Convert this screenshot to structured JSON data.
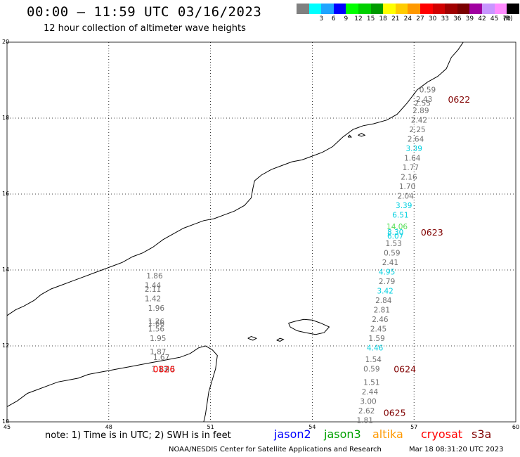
{
  "header": {
    "title": "00:00 – 11:59 UTC 03/16/2023",
    "subtitle": "12 hour collection of altimeter wave heights"
  },
  "legend": {
    "unit_label": "(ft)",
    "scale": [
      {
        "label": "",
        "color": "#808080"
      },
      {
        "label": "3",
        "color": "#00ffff"
      },
      {
        "label": "6",
        "color": "#1fa5ff"
      },
      {
        "label": "9",
        "color": "#0000ff"
      },
      {
        "label": "12",
        "color": "#00ff00"
      },
      {
        "label": "15",
        "color": "#00d000"
      },
      {
        "label": "18",
        "color": "#009a00"
      },
      {
        "label": "21",
        "color": "#ffff00"
      },
      {
        "label": "24",
        "color": "#ffcc00"
      },
      {
        "label": "27",
        "color": "#ff9900"
      },
      {
        "label": "30",
        "color": "#ff0000"
      },
      {
        "label": "33",
        "color": "#d10000"
      },
      {
        "label": "36",
        "color": "#a00000"
      },
      {
        "label": "39",
        "color": "#7a0000"
      },
      {
        "label": "42",
        "color": "#a000a0"
      },
      {
        "label": "45",
        "color": "#c896ff"
      },
      {
        "label": "70",
        "color": "#ff8cff"
      },
      {
        "label": "",
        "color": "#000000"
      }
    ]
  },
  "axes": {
    "lat_ticks": [
      "20",
      "18",
      "16",
      "14",
      "12",
      "10"
    ],
    "lon_ticks": [
      "45",
      "48",
      "51",
      "54",
      "57",
      "60"
    ]
  },
  "map": {
    "region": {
      "lon_min": 45,
      "lon_max": 60,
      "lat_min": 10,
      "lat_max": 20
    },
    "track_labels": [
      {
        "text": "0622",
        "lon": 58.0,
        "lat": 18.5,
        "color": "#800000"
      },
      {
        "text": "0623",
        "lon": 57.2,
        "lat": 15.0,
        "color": "#800000"
      },
      {
        "text": "0624",
        "lon": 56.4,
        "lat": 11.4,
        "color": "#800000"
      },
      {
        "text": "0625",
        "lon": 56.1,
        "lat": 10.25,
        "color": "#800000"
      },
      {
        "text": "0826",
        "lon": 49.3,
        "lat": 11.4,
        "color": "#ff0000"
      }
    ],
    "observations": [
      {
        "value": "0.59",
        "lon": 57.4,
        "lat": 18.75,
        "color": "#707070"
      },
      {
        "value": "2.43",
        "lon": 57.3,
        "lat": 18.5,
        "color": "#707070"
      },
      {
        "value": "2.55",
        "lon": 57.25,
        "lat": 18.4,
        "color": "#707070"
      },
      {
        "value": "2.89",
        "lon": 57.2,
        "lat": 18.2,
        "color": "#707070"
      },
      {
        "value": "2.42",
        "lon": 57.15,
        "lat": 17.95,
        "color": "#707070"
      },
      {
        "value": "2.25",
        "lon": 57.1,
        "lat": 17.7,
        "color": "#707070"
      },
      {
        "value": "2.64",
        "lon": 57.05,
        "lat": 17.45,
        "color": "#707070"
      },
      {
        "value": "3.39",
        "lon": 57.0,
        "lat": 17.2,
        "color": "#00d0e0"
      },
      {
        "value": "1.64",
        "lon": 56.95,
        "lat": 16.95,
        "color": "#707070"
      },
      {
        "value": "1.77",
        "lon": 56.9,
        "lat": 16.7,
        "color": "#707070"
      },
      {
        "value": "2.16",
        "lon": 56.85,
        "lat": 16.45,
        "color": "#707070"
      },
      {
        "value": "1.70",
        "lon": 56.8,
        "lat": 16.2,
        "color": "#707070"
      },
      {
        "value": "2.04",
        "lon": 56.75,
        "lat": 15.95,
        "color": "#707070"
      },
      {
        "value": "3.39",
        "lon": 56.7,
        "lat": 15.7,
        "color": "#00d0e0"
      },
      {
        "value": "6.51",
        "lon": 56.6,
        "lat": 15.45,
        "color": "#00d0e0"
      },
      {
        "value": "14.06",
        "lon": 56.5,
        "lat": 15.15,
        "color": "#55dd55"
      },
      {
        "value": "8.30",
        "lon": 56.45,
        "lat": 15.0,
        "color": "#00d0e0"
      },
      {
        "value": "6.07",
        "lon": 56.45,
        "lat": 14.9,
        "color": "#00d0e0"
      },
      {
        "value": "1.53",
        "lon": 56.4,
        "lat": 14.7,
        "color": "#707070"
      },
      {
        "value": "0.59",
        "lon": 56.35,
        "lat": 14.45,
        "color": "#707070"
      },
      {
        "value": "2.41",
        "lon": 56.3,
        "lat": 14.2,
        "color": "#707070"
      },
      {
        "value": "4.95",
        "lon": 56.2,
        "lat": 13.95,
        "color": "#00d0e0"
      },
      {
        "value": "2.79",
        "lon": 56.2,
        "lat": 13.7,
        "color": "#707070"
      },
      {
        "value": "3.42",
        "lon": 56.15,
        "lat": 13.45,
        "color": "#00d0e0"
      },
      {
        "value": "2.84",
        "lon": 56.1,
        "lat": 13.2,
        "color": "#707070"
      },
      {
        "value": "2.81",
        "lon": 56.05,
        "lat": 12.95,
        "color": "#707070"
      },
      {
        "value": "2.46",
        "lon": 56.0,
        "lat": 12.7,
        "color": "#707070"
      },
      {
        "value": "2.45",
        "lon": 55.95,
        "lat": 12.45,
        "color": "#707070"
      },
      {
        "value": "1.59",
        "lon": 55.9,
        "lat": 12.2,
        "color": "#707070"
      },
      {
        "value": "4.46",
        "lon": 55.85,
        "lat": 11.95,
        "color": "#00d0e0"
      },
      {
        "value": "1.54",
        "lon": 55.8,
        "lat": 11.65,
        "color": "#707070"
      },
      {
        "value": "0.59",
        "lon": 55.75,
        "lat": 11.4,
        "color": "#707070"
      },
      {
        "value": "1.51",
        "lon": 55.75,
        "lat": 11.05,
        "color": "#707070"
      },
      {
        "value": "2.44",
        "lon": 55.7,
        "lat": 10.8,
        "color": "#707070"
      },
      {
        "value": "3.00",
        "lon": 55.65,
        "lat": 10.55,
        "color": "#707070"
      },
      {
        "value": "2.62",
        "lon": 55.6,
        "lat": 10.3,
        "color": "#707070"
      },
      {
        "value": "1.81",
        "lon": 55.55,
        "lat": 10.05,
        "color": "#707070"
      },
      {
        "value": "1.86",
        "lon": 49.35,
        "lat": 13.85,
        "color": "#707070"
      },
      {
        "value": "1.44",
        "lon": 49.3,
        "lat": 13.6,
        "color": "#707070"
      },
      {
        "value": "2.11",
        "lon": 49.3,
        "lat": 13.5,
        "color": "#707070"
      },
      {
        "value": "1.42",
        "lon": 49.3,
        "lat": 13.25,
        "color": "#707070"
      },
      {
        "value": "1.96",
        "lon": 49.4,
        "lat": 13.0,
        "color": "#707070"
      },
      {
        "value": "1.26",
        "lon": 49.4,
        "lat": 12.65,
        "color": "#707070"
      },
      {
        "value": "1.66",
        "lon": 49.4,
        "lat": 12.6,
        "color": "#707070"
      },
      {
        "value": "1.56",
        "lon": 49.4,
        "lat": 12.45,
        "color": "#707070"
      },
      {
        "value": "1.95",
        "lon": 49.45,
        "lat": 12.2,
        "color": "#707070"
      },
      {
        "value": "1.87",
        "lon": 49.45,
        "lat": 11.85,
        "color": "#707070"
      },
      {
        "value": "1.67",
        "lon": 49.55,
        "lat": 11.7,
        "color": "#707070"
      },
      {
        "value": "1.13",
        "lon": 49.5,
        "lat": 11.4,
        "color": "#707070"
      },
      {
        "value": "1.43",
        "lon": 49.7,
        "lat": 11.4,
        "color": "#707070"
      }
    ],
    "coastline_north": [
      [
        45.0,
        12.8
      ],
      [
        45.25,
        12.95
      ],
      [
        45.5,
        13.05
      ],
      [
        45.8,
        13.2
      ],
      [
        46.0,
        13.35
      ],
      [
        46.3,
        13.5
      ],
      [
        46.6,
        13.6
      ],
      [
        46.9,
        13.7
      ],
      [
        47.2,
        13.8
      ],
      [
        47.5,
        13.9
      ],
      [
        47.8,
        14.0
      ],
      [
        48.1,
        14.1
      ],
      [
        48.4,
        14.2
      ],
      [
        48.7,
        14.35
      ],
      [
        49.0,
        14.45
      ],
      [
        49.3,
        14.6
      ],
      [
        49.6,
        14.8
      ],
      [
        49.9,
        14.95
      ],
      [
        50.2,
        15.1
      ],
      [
        50.5,
        15.2
      ],
      [
        50.8,
        15.3
      ],
      [
        51.1,
        15.35
      ],
      [
        51.4,
        15.45
      ],
      [
        51.7,
        15.55
      ],
      [
        52.0,
        15.7
      ],
      [
        52.2,
        15.9
      ],
      [
        52.25,
        16.15
      ],
      [
        52.3,
        16.35
      ],
      [
        52.5,
        16.5
      ],
      [
        52.8,
        16.65
      ],
      [
        53.1,
        16.75
      ],
      [
        53.4,
        16.85
      ],
      [
        53.7,
        16.9
      ],
      [
        54.0,
        17.0
      ],
      [
        54.3,
        17.1
      ],
      [
        54.6,
        17.25
      ],
      [
        54.9,
        17.5
      ],
      [
        55.2,
        17.7
      ],
      [
        55.5,
        17.8
      ],
      [
        55.8,
        17.85
      ],
      [
        56.2,
        17.95
      ],
      [
        56.5,
        18.1
      ],
      [
        56.8,
        18.4
      ],
      [
        57.1,
        18.75
      ],
      [
        57.4,
        18.95
      ],
      [
        57.7,
        19.1
      ],
      [
        57.95,
        19.3
      ],
      [
        58.1,
        19.6
      ],
      [
        58.3,
        19.8
      ],
      [
        58.45,
        20.0
      ]
    ],
    "coastline_south": [
      [
        45.0,
        10.4
      ],
      [
        45.3,
        10.55
      ],
      [
        45.6,
        10.75
      ],
      [
        45.9,
        10.85
      ],
      [
        46.2,
        10.95
      ],
      [
        46.5,
        11.05
      ],
      [
        46.8,
        11.1
      ],
      [
        47.1,
        11.15
      ],
      [
        47.4,
        11.25
      ],
      [
        47.7,
        11.3
      ],
      [
        48.0,
        11.35
      ],
      [
        48.3,
        11.4
      ],
      [
        48.6,
        11.45
      ],
      [
        48.9,
        11.5
      ],
      [
        49.2,
        11.55
      ],
      [
        49.5,
        11.6
      ],
      [
        49.8,
        11.65
      ],
      [
        50.1,
        11.7
      ],
      [
        50.4,
        11.8
      ],
      [
        50.65,
        11.95
      ],
      [
        50.85,
        12.0
      ],
      [
        51.05,
        11.9
      ],
      [
        51.2,
        11.75
      ],
      [
        51.15,
        11.4
      ],
      [
        51.05,
        11.1
      ],
      [
        50.95,
        10.8
      ],
      [
        50.9,
        10.5
      ],
      [
        50.85,
        10.2
      ],
      [
        50.8,
        10.0
      ]
    ],
    "island_socotra": [
      [
        53.3,
        12.6
      ],
      [
        53.5,
        12.65
      ],
      [
        53.75,
        12.7
      ],
      [
        54.0,
        12.68
      ],
      [
        54.25,
        12.6
      ],
      [
        54.5,
        12.5
      ],
      [
        54.35,
        12.35
      ],
      [
        54.1,
        12.3
      ],
      [
        53.8,
        12.35
      ],
      [
        53.55,
        12.4
      ],
      [
        53.35,
        12.5
      ],
      [
        53.3,
        12.6
      ]
    ],
    "island_small_1": [
      [
        52.1,
        12.2
      ],
      [
        52.2,
        12.25
      ],
      [
        52.35,
        12.2
      ],
      [
        52.25,
        12.15
      ],
      [
        52.1,
        12.2
      ]
    ],
    "island_small_2": [
      [
        52.95,
        12.15
      ],
      [
        53.05,
        12.2
      ],
      [
        53.15,
        12.17
      ],
      [
        53.05,
        12.12
      ],
      [
        52.95,
        12.15
      ]
    ],
    "island_small_3": [
      [
        55.05,
        17.5
      ],
      [
        55.1,
        17.55
      ],
      [
        55.15,
        17.5
      ],
      [
        55.05,
        17.5
      ]
    ],
    "island_small_4": [
      [
        55.35,
        17.55
      ],
      [
        55.45,
        17.6
      ],
      [
        55.55,
        17.55
      ],
      [
        55.45,
        17.52
      ],
      [
        55.35,
        17.55
      ]
    ]
  },
  "footer": {
    "note": "note: 1) Time is in UTC; 2) SWH is in feet",
    "satellites": [
      {
        "name": "jason2",
        "color": "#0000ff"
      },
      {
        "name": "jason3",
        "color": "#00a000"
      },
      {
        "name": "altika",
        "color": "#ff9900"
      },
      {
        "name": "cryosat",
        "color": "#ff0000"
      },
      {
        "name": "s3a",
        "color": "#800000"
      }
    ],
    "credit": "NOAA/NESDIS Center for Satellite Applications and Research",
    "timestamp": "Mar 18 08:31:20 UTC 2023"
  }
}
